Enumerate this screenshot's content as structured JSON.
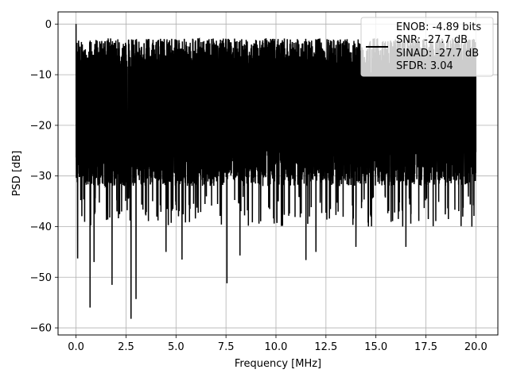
{
  "chart_data": {
    "type": "line",
    "title": "",
    "xlabel": "Frequency [MHz]",
    "ylabel": "PSD [dB]",
    "xlim": [
      -0.9,
      21.1
    ],
    "ylim": [
      -61.4,
      2.4
    ],
    "x_ticks": [
      0.0,
      2.5,
      5.0,
      7.5,
      10.0,
      12.5,
      15.0,
      17.5,
      20.0
    ],
    "x_tick_labels": [
      "0.0",
      "2.5",
      "5.0",
      "7.5",
      "10.0",
      "12.5",
      "15.0",
      "17.5",
      "20.0"
    ],
    "y_ticks": [
      0,
      -10,
      -20,
      -30,
      -40,
      -50,
      -60
    ],
    "y_tick_labels": [
      "0",
      "−10",
      "−20",
      "−30",
      "−40",
      "−50",
      "−60"
    ],
    "grid": true,
    "legend_position": "top-right",
    "series": [
      {
        "name": "ENOB: -4.89 bits\nSNR: -27.7 dB\nSINAD: -27.7 dB\nSFDR: 3.04",
        "legend_lines": [
          "ENOB: -4.89 bits",
          "SNR: -27.7 dB",
          "SINAD: -27.7 dB",
          "SFDR: 3.04"
        ],
        "color": "#000000",
        "x_range": [
          0.0,
          20.0
        ],
        "noise_band": {
          "upper_dB": -8,
          "lower_dB": -34,
          "median_dB": -20
        },
        "peaks": [
          {
            "x": 0.0,
            "y": 0.0
          },
          {
            "x": 0.08,
            "y": -8.0
          },
          {
            "x": 8.9,
            "y": -3.8
          },
          {
            "x": 10.7,
            "y": -3.9
          },
          {
            "x": 15.0,
            "y": -4.3
          }
        ],
        "dips": [
          {
            "x": 0.08,
            "y": -46.3
          },
          {
            "x": 0.7,
            "y": -56.0
          },
          {
            "x": 0.9,
            "y": -47.0
          },
          {
            "x": 1.8,
            "y": -51.5
          },
          {
            "x": 2.75,
            "y": -58.2
          },
          {
            "x": 3.0,
            "y": -54.3
          },
          {
            "x": 4.5,
            "y": -45.0
          },
          {
            "x": 5.3,
            "y": -46.5
          },
          {
            "x": 7.55,
            "y": -51.2
          },
          {
            "x": 8.2,
            "y": -45.7
          },
          {
            "x": 11.5,
            "y": -46.6
          },
          {
            "x": 12.0,
            "y": -45.0
          },
          {
            "x": 14.0,
            "y": -44.0
          },
          {
            "x": 16.5,
            "y": -44.0
          },
          {
            "x": 19.8,
            "y": -40.0
          }
        ]
      }
    ]
  }
}
